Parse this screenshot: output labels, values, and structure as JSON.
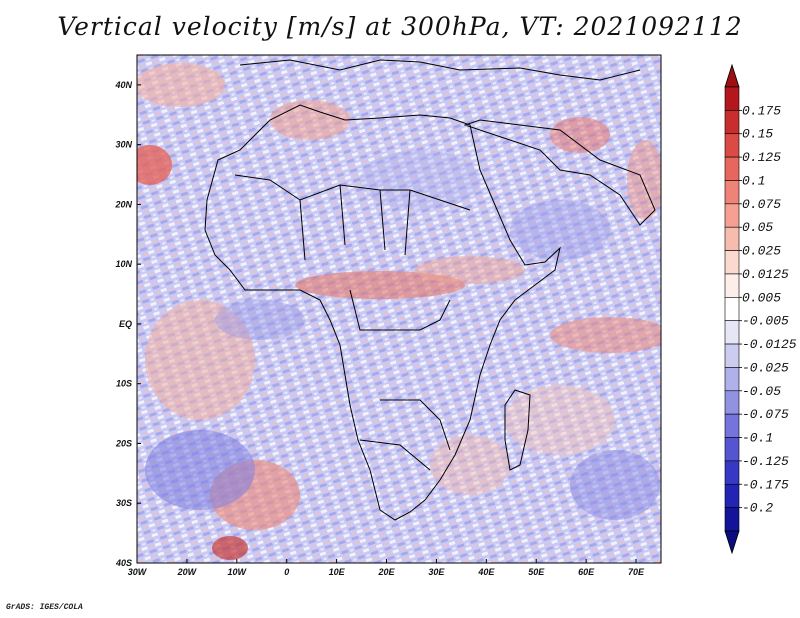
{
  "title": "Vertical velocity [m/s] at 300hPa, VT: 2021092112",
  "credit": "GrADS: IGES/COLA",
  "map": {
    "lon_range": [
      -30,
      75
    ],
    "lat_range": [
      -40,
      45
    ],
    "x_ticks": [
      "30W",
      "20W",
      "10W",
      "0",
      "10E",
      "20E",
      "30E",
      "40E",
      "50E",
      "60E",
      "70E"
    ],
    "y_ticks": [
      "40N",
      "30N",
      "20N",
      "10N",
      "EQ",
      "10S",
      "20S",
      "30S",
      "40S"
    ]
  },
  "colorbar": {
    "labels": [
      "0.175",
      "0.15",
      "0.125",
      "0.1",
      "0.075",
      "0.05",
      "0.025",
      "0.0125",
      "0.005",
      "-0.005",
      "-0.0125",
      "-0.025",
      "-0.05",
      "-0.075",
      "-0.1",
      "-0.125",
      "-0.175",
      "-0.2"
    ],
    "colors": [
      "#b3161c",
      "#c92e2e",
      "#dc4a46",
      "#e9665f",
      "#f08378",
      "#f5a092",
      "#f8bcae",
      "#fbd9cf",
      "#fdeee9",
      "#ffffff",
      "#e6e6f7",
      "#ccccf0",
      "#b0b0ea",
      "#9292e3",
      "#7474dc",
      "#5555d2",
      "#3838c6",
      "#2323b4",
      "#14149a"
    ],
    "top_arrow_color": "#9e0f12",
    "bottom_arrow_color": "#0c0c80"
  }
}
